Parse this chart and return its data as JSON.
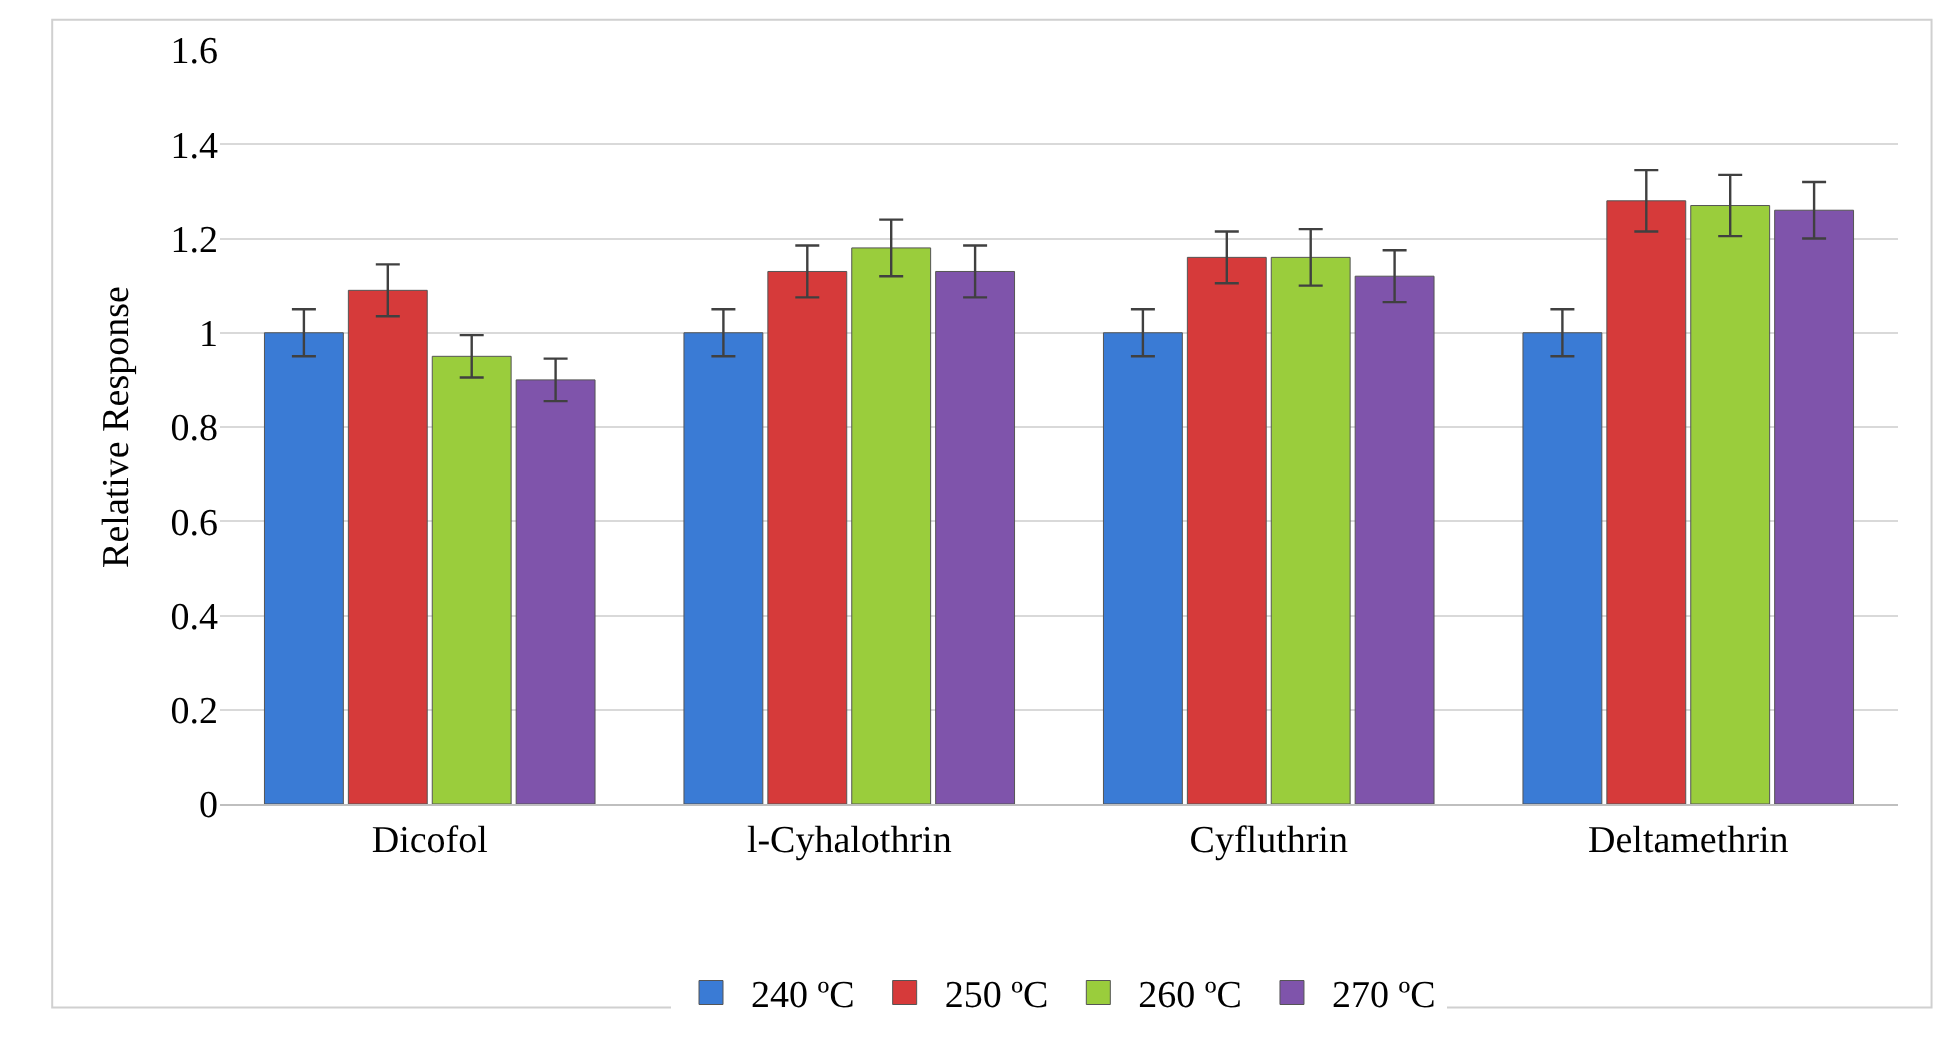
{
  "chart_data": {
    "type": "bar",
    "ylabel": "Relative Response",
    "categories": [
      "Dicofol",
      "l-Cyhalothrin",
      "Cyfluthrin",
      "Deltamethrin"
    ],
    "series": [
      {
        "name": "240 ºC",
        "color": "#3a7bd5",
        "values": [
          1.0,
          1.0,
          1.0,
          1.0
        ],
        "errors": [
          0.05,
          0.05,
          0.05,
          0.05
        ]
      },
      {
        "name": "250 ºC",
        "color": "#d63a3a",
        "values": [
          1.09,
          1.13,
          1.16,
          1.28
        ],
        "errors": [
          0.055,
          0.055,
          0.055,
          0.065
        ]
      },
      {
        "name": "260 ºC",
        "color": "#9acd3c",
        "values": [
          0.95,
          1.18,
          1.16,
          1.27
        ],
        "errors": [
          0.045,
          0.06,
          0.06,
          0.065
        ]
      },
      {
        "name": "270 ºC",
        "color": "#7f54ab",
        "values": [
          0.9,
          1.13,
          1.12,
          1.26
        ],
        "errors": [
          0.045,
          0.055,
          0.055,
          0.06
        ]
      }
    ],
    "ylim": [
      0,
      1.6
    ],
    "yticks": [
      0,
      0.2,
      0.4,
      0.6,
      0.8,
      1,
      1.2,
      1.4,
      1.6
    ],
    "grid": "y",
    "legend": "bottom"
  }
}
